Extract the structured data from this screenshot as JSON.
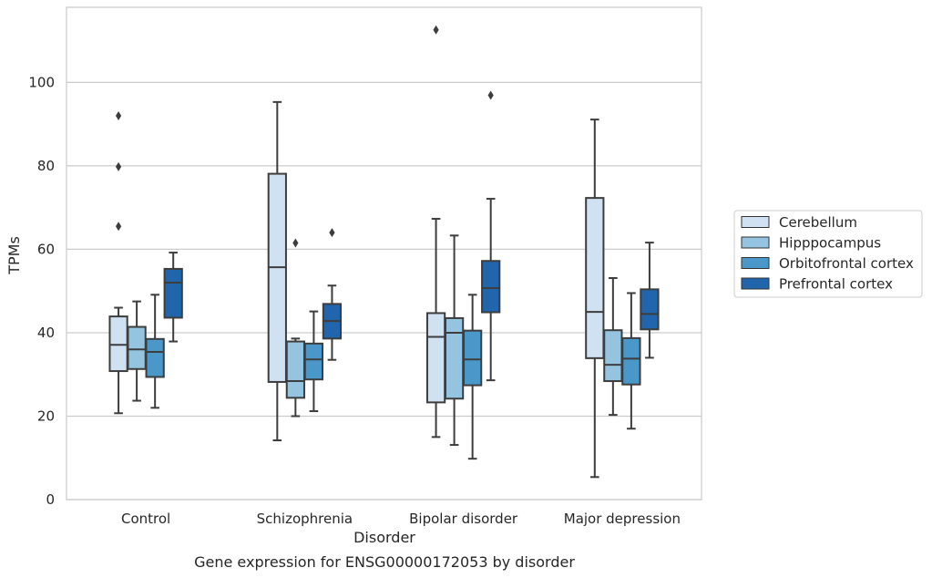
{
  "chart_data": {
    "type": "box",
    "title": "",
    "caption": "Gene expression for ENSG00000172053 by disorder",
    "xlabel": "Disorder",
    "ylabel": "TPMs",
    "ylim": [
      0,
      118
    ],
    "yticks": [
      0,
      20,
      40,
      60,
      80,
      100
    ],
    "grid": "horizontal",
    "legend_position": "right",
    "categories": [
      "Control",
      "Schizophrenia",
      "Bipolar disorder",
      "Major depression"
    ],
    "series": [
      {
        "name": "Cerebellum",
        "color": "#d0e1f2",
        "boxes": [
          {
            "whisker_low": 20.7,
            "q1": 30.8,
            "median": 37.1,
            "q3": 43.9,
            "whisker_high": 46.0,
            "outliers": [
              65.5,
              79.8,
              92.0
            ]
          },
          {
            "whisker_low": 14.2,
            "q1": 28.2,
            "median": 55.7,
            "q3": 78.1,
            "whisker_high": 95.3,
            "outliers": []
          },
          {
            "whisker_low": 15.0,
            "q1": 23.3,
            "median": 39.0,
            "q3": 44.7,
            "whisker_high": 67.3,
            "outliers": [
              112.6
            ]
          },
          {
            "whisker_low": 5.4,
            "q1": 33.9,
            "median": 45.0,
            "q3": 72.3,
            "whisker_high": 91.1,
            "outliers": []
          }
        ]
      },
      {
        "name": "Hipppocampus",
        "color": "#94c4df",
        "boxes": [
          {
            "whisker_low": 23.7,
            "q1": 31.3,
            "median": 36.0,
            "q3": 41.4,
            "whisker_high": 47.5,
            "outliers": []
          },
          {
            "whisker_low": 20.0,
            "q1": 24.4,
            "median": 28.4,
            "q3": 37.9,
            "whisker_high": 38.6,
            "outliers": [
              61.5
            ]
          },
          {
            "whisker_low": 13.1,
            "q1": 24.2,
            "median": 40.0,
            "q3": 43.5,
            "whisker_high": 63.3,
            "outliers": []
          },
          {
            "whisker_low": 20.3,
            "q1": 28.4,
            "median": 32.3,
            "q3": 40.6,
            "whisker_high": 53.1,
            "outliers": []
          }
        ]
      },
      {
        "name": "Orbitofrontal cortex",
        "color": "#4a98c9",
        "boxes": [
          {
            "whisker_low": 22.0,
            "q1": 29.4,
            "median": 35.4,
            "q3": 38.5,
            "whisker_high": 49.1,
            "outliers": []
          },
          {
            "whisker_low": 21.2,
            "q1": 28.8,
            "median": 33.6,
            "q3": 37.4,
            "whisker_high": 45.1,
            "outliers": []
          },
          {
            "whisker_low": 9.8,
            "q1": 27.4,
            "median": 33.6,
            "q3": 40.5,
            "whisker_high": 49.1,
            "outliers": []
          },
          {
            "whisker_low": 17.0,
            "q1": 27.6,
            "median": 33.8,
            "q3": 38.7,
            "whisker_high": 49.5,
            "outliers": []
          }
        ]
      },
      {
        "name": "Prefrontal cortex",
        "color": "#2166ac",
        "boxes": [
          {
            "whisker_low": 37.9,
            "q1": 43.6,
            "median": 52.0,
            "q3": 55.3,
            "whisker_high": 59.2,
            "outliers": []
          },
          {
            "whisker_low": 33.5,
            "q1": 38.6,
            "median": 42.8,
            "q3": 46.9,
            "whisker_high": 51.3,
            "outliers": [
              64.0
            ]
          },
          {
            "whisker_low": 28.6,
            "q1": 44.9,
            "median": 50.7,
            "q3": 57.2,
            "whisker_high": 72.1,
            "outliers": [
              96.9
            ]
          },
          {
            "whisker_low": 34.0,
            "q1": 40.8,
            "median": 44.5,
            "q3": 50.4,
            "whisker_high": 61.6,
            "outliers": []
          }
        ]
      }
    ]
  }
}
